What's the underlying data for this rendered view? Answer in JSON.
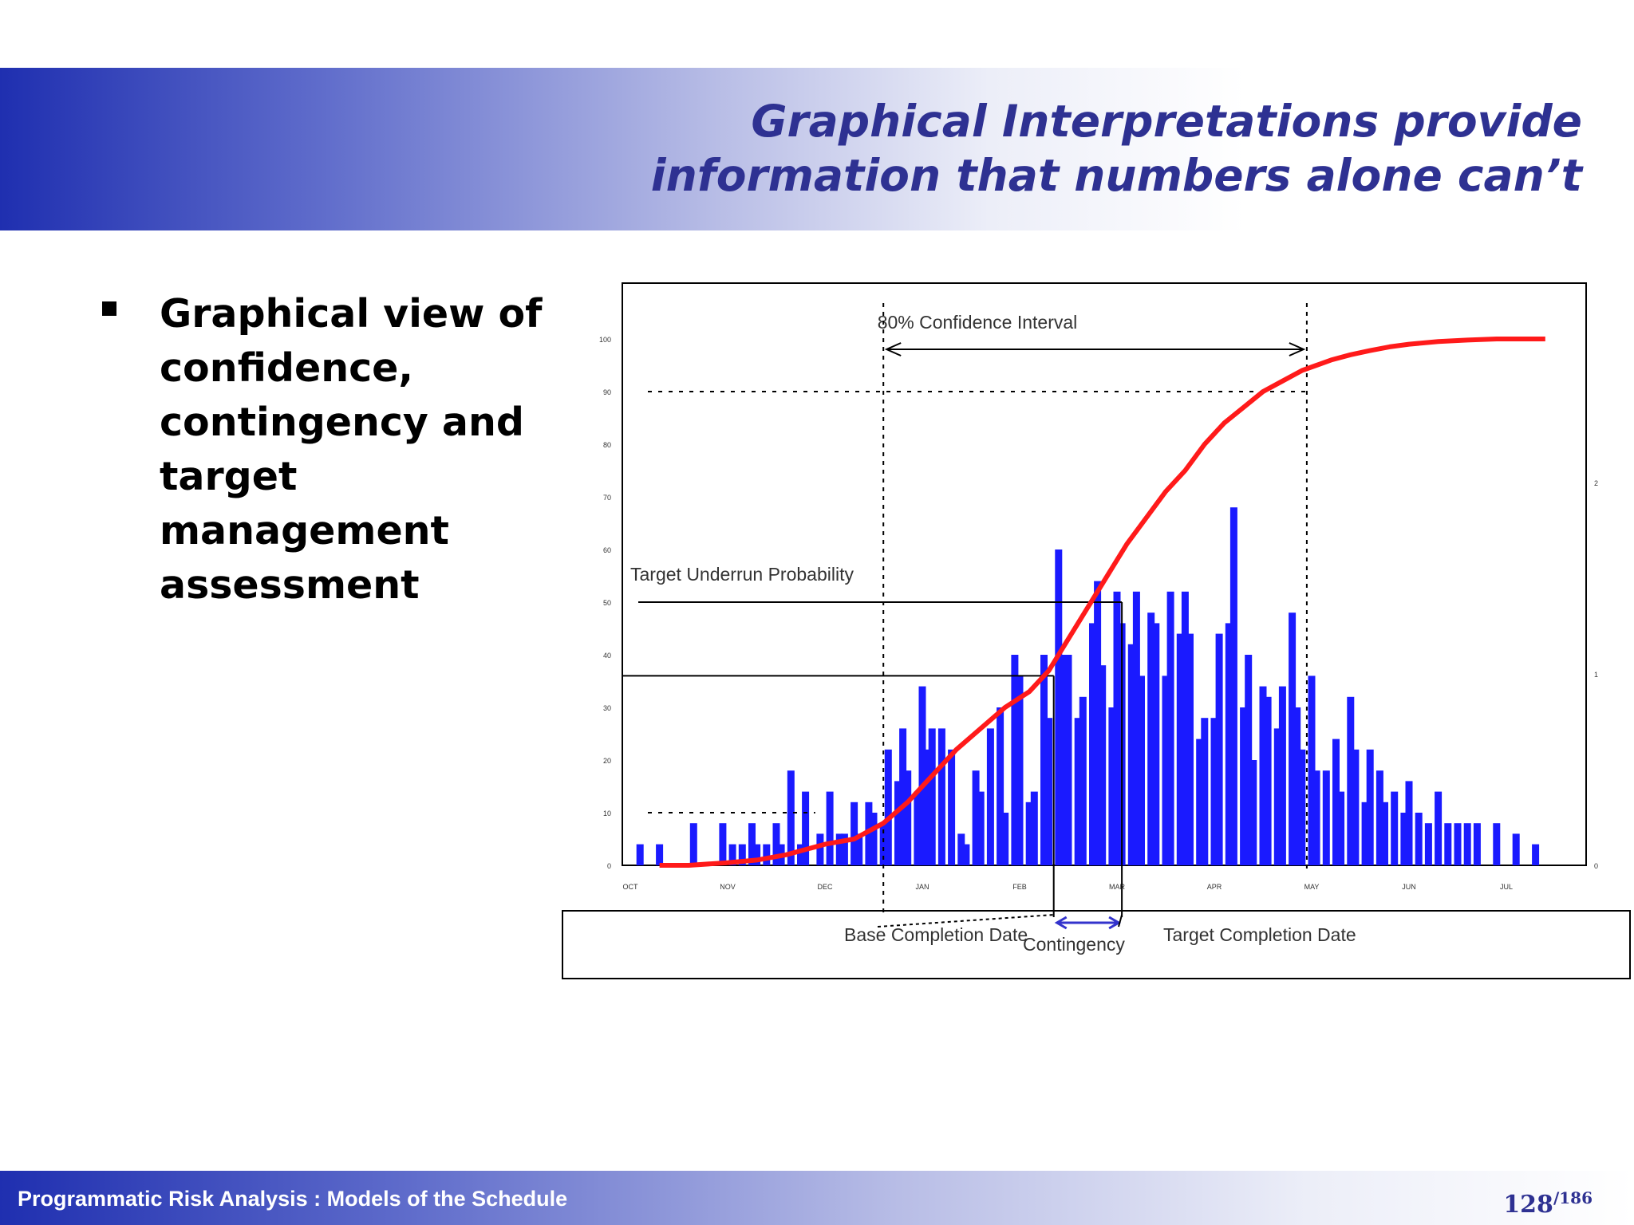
{
  "slide": {
    "title_line1": "Graphical Interpretations provide",
    "title_line2": "information that numbers alone can’t",
    "bullet": "Graphical view of confidence, contingency and target management assessment",
    "footer": "Programmatic Risk Analysis : Models of the Schedule",
    "page_number": "128",
    "page_total": "/186",
    "colors": {
      "title": "#2e3192",
      "band": "#1f2fb0",
      "cdf": "#ff1a1a",
      "bars": "#1a1aff"
    }
  },
  "chart_data": {
    "type": "bar",
    "ylim": [
      0,
      100
    ],
    "y_ticks": [
      "0",
      "10",
      "20",
      "30",
      "40",
      "50",
      "60",
      "70",
      "80",
      "90",
      "100"
    ],
    "right_ticks": [
      "0",
      "1",
      "2"
    ],
    "x_ticks": [
      "OCT",
      "NOV",
      "DEC",
      "JAN",
      "FEB",
      "MAR",
      "APR",
      "MAY",
      "JUN",
      "JUL"
    ],
    "annotations": {
      "confidence_interval": "80% Confidence Interval",
      "underrun": "Target Underrun Probability",
      "base_completion": "Base Completion Date",
      "contingency": "Contingency",
      "target_completion": "Target Completion Date"
    },
    "series": [
      {
        "type": "histogram",
        "x": [
          0.1,
          0.3,
          0.65,
          0.95,
          1.05,
          1.15,
          1.25,
          1.3,
          1.4,
          1.5,
          1.55,
          1.65,
          1.75,
          1.8,
          1.95,
          2.05,
          2.15,
          2.2,
          2.3,
          2.35,
          2.45,
          2.5,
          2.6,
          2.65,
          2.75,
          2.8,
          2.85,
          2.95,
          3.0,
          3.05,
          3.1,
          3.2,
          3.3,
          3.4,
          3.45,
          3.55,
          3.6,
          3.7,
          3.8,
          3.85,
          3.95,
          4.0,
          4.1,
          4.15,
          4.25,
          4.3,
          4.4,
          4.45,
          4.5,
          4.6,
          4.65,
          4.75,
          4.8,
          4.85,
          4.95,
          5.0,
          5.05,
          5.15,
          5.2,
          5.25,
          5.35,
          5.4,
          5.5,
          5.55,
          5.65,
          5.7,
          5.75,
          5.85,
          5.9,
          6.0,
          6.05,
          6.15,
          6.2,
          6.3,
          6.35,
          6.4,
          6.5,
          6.55,
          6.65,
          6.7,
          6.8,
          6.85,
          6.9,
          7.0,
          7.05,
          7.15,
          7.25,
          7.3,
          7.4,
          7.45,
          7.55,
          7.6,
          7.7,
          7.75,
          7.85,
          7.95,
          8.0,
          8.1,
          8.2,
          8.3,
          8.4,
          8.5,
          8.6,
          8.7,
          8.9,
          9.1,
          9.3
        ],
        "values": [
          4,
          4,
          8,
          8,
          4,
          4,
          8,
          4,
          4,
          8,
          4,
          18,
          4,
          14,
          6,
          14,
          6,
          6,
          12,
          6,
          12,
          10,
          8,
          22,
          16,
          26,
          18,
          14,
          34,
          22,
          26,
          26,
          22,
          6,
          4,
          18,
          14,
          26,
          30,
          10,
          40,
          36,
          12,
          14,
          40,
          28,
          60,
          40,
          40,
          28,
          32,
          46,
          54,
          38,
          30,
          52,
          46,
          42,
          52,
          36,
          48,
          46,
          36,
          52,
          44,
          52,
          44,
          24,
          28,
          28,
          44,
          46,
          68,
          30,
          40,
          20,
          34,
          32,
          26,
          34,
          48,
          30,
          22,
          36,
          18,
          18,
          24,
          14,
          32,
          22,
          12,
          22,
          18,
          12,
          14,
          10,
          16,
          10,
          8,
          14,
          8,
          8,
          8,
          8,
          8,
          6,
          4
        ],
        "color": "#1a1aff"
      },
      {
        "type": "line",
        "name": "cumulative",
        "x": [
          0.3,
          0.6,
          1.0,
          1.3,
          1.6,
          2.0,
          2.3,
          2.6,
          2.85,
          3.1,
          3.35,
          3.6,
          3.85,
          4.1,
          4.3,
          4.5,
          4.7,
          4.9,
          5.1,
          5.3,
          5.5,
          5.7,
          5.9,
          6.1,
          6.3,
          6.5,
          6.7,
          6.9,
          7.05,
          7.2,
          7.4,
          7.6,
          7.8,
          8.0,
          8.3,
          8.6,
          8.9,
          9.2,
          9.4
        ],
        "values": [
          0,
          0,
          0.5,
          1,
          2,
          4,
          5,
          8,
          12,
          17,
          22,
          26,
          30,
          33,
          37,
          43,
          49,
          55,
          61,
          66,
          71,
          75,
          80,
          84,
          87,
          90,
          92,
          94,
          95,
          96,
          97,
          97.8,
          98.5,
          99,
          99.5,
          99.8,
          100,
          100,
          100
        ],
        "color": "#ff1a1a"
      }
    ],
    "markers": {
      "ci_low_month": 2.6,
      "ci_high_month": 6.95,
      "base_month": 4.35,
      "target_month": 5.05,
      "underrun_pct": 50,
      "base_pct": 36,
      "dashed_pct": 90,
      "low_dashed_pct": 10
    }
  }
}
